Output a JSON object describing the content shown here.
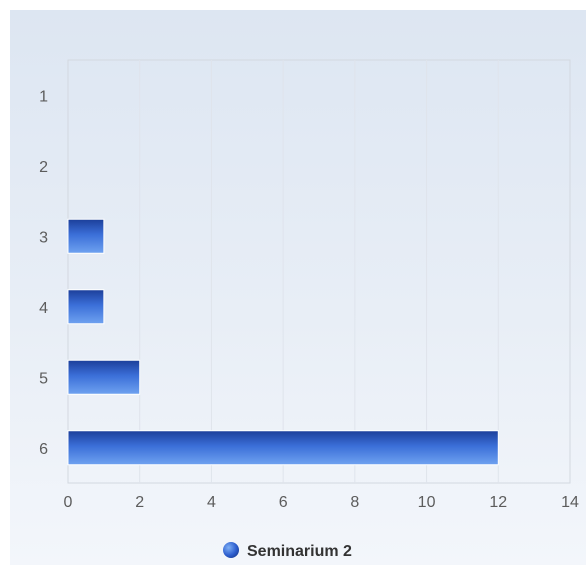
{
  "chart_data": {
    "type": "bar",
    "orientation": "horizontal",
    "title": "",
    "xlabel": "",
    "ylabel": "",
    "categories": [
      "1",
      "2",
      "3",
      "4",
      "5",
      "6"
    ],
    "series": [
      {
        "name": "Seminarium 2",
        "values": [
          0,
          0,
          1,
          1,
          2,
          12
        ]
      }
    ],
    "xlim": [
      0,
      14
    ],
    "x_ticks": [
      0,
      2,
      4,
      6,
      8,
      10,
      12,
      14
    ],
    "grid": true,
    "legend": "bottom-center",
    "colors": {
      "bar_dark": "#1c3f9a",
      "bar_mid": "#3b6fd8",
      "bar_light": "#6fa2f0",
      "grid": "#dfe4ec",
      "axis": "#c8cdd6"
    }
  }
}
